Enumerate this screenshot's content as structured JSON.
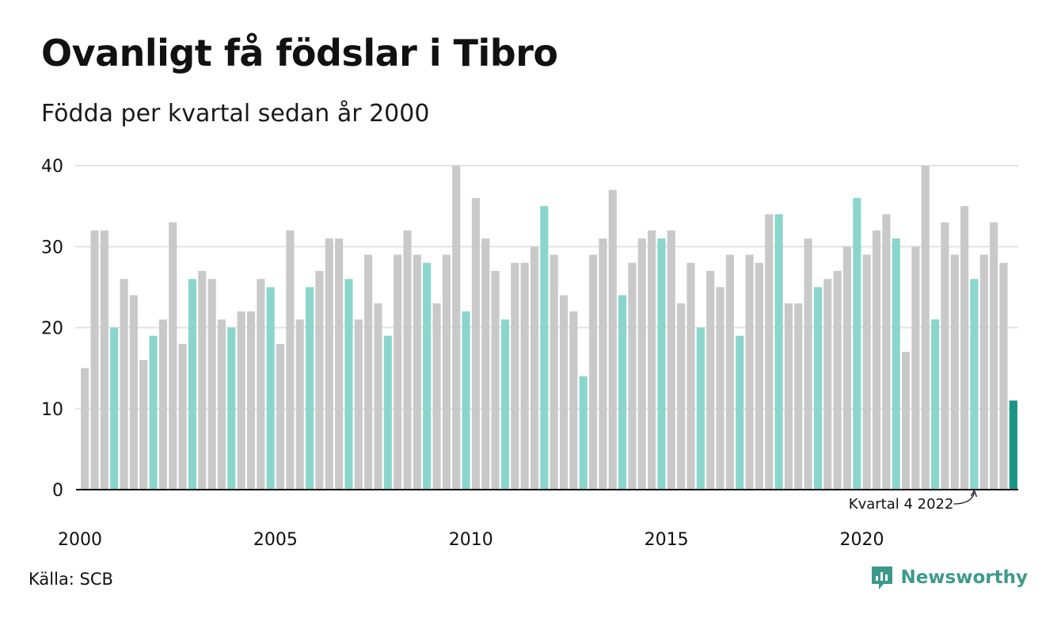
{
  "title": "Ovanligt få födslar i Tibro",
  "subtitle": "Födda per kvartal sedan år 2000",
  "source": "Källa: SCB",
  "brand": "Newsworthy",
  "colors": {
    "other_quarter": "#c9c9c9",
    "same_quarter": "#8ad6cc",
    "latest": "#1a9484",
    "grid": "#e3e3e3",
    "axis": "#111111"
  },
  "chart_data": {
    "type": "bar",
    "title": "Ovanligt få födslar i Tibro",
    "subtitle": "Födda per kvartal sedan år 2000",
    "xlabel": "",
    "ylabel": "",
    "ylim": [
      0,
      40
    ],
    "yticks": [
      0,
      10,
      20,
      30,
      40
    ],
    "xticks": [
      "2000",
      "2005",
      "2010",
      "2015",
      "2020"
    ],
    "grid": true,
    "start_year": 2000,
    "highlight_quarter": 4,
    "annotation": "Kvartal 4 2022",
    "values": [
      15,
      32,
      32,
      20,
      26,
      24,
      16,
      19,
      21,
      33,
      18,
      26,
      27,
      26,
      21,
      20,
      22,
      22,
      26,
      25,
      18,
      32,
      21,
      25,
      27,
      31,
      31,
      26,
      21,
      29,
      23,
      19,
      29,
      32,
      29,
      28,
      23,
      29,
      40,
      22,
      36,
      31,
      27,
      21,
      28,
      28,
      30,
      35,
      29,
      24,
      22,
      14,
      29,
      31,
      37,
      24,
      28,
      31,
      32,
      31,
      32,
      23,
      28,
      20,
      27,
      25,
      29,
      19,
      29,
      28,
      34,
      34,
      23,
      23,
      31,
      25,
      26,
      27,
      30,
      36,
      29,
      32,
      34,
      31,
      17,
      30,
      40,
      21,
      33,
      29,
      35,
      26,
      29,
      33,
      28,
      11
    ]
  }
}
